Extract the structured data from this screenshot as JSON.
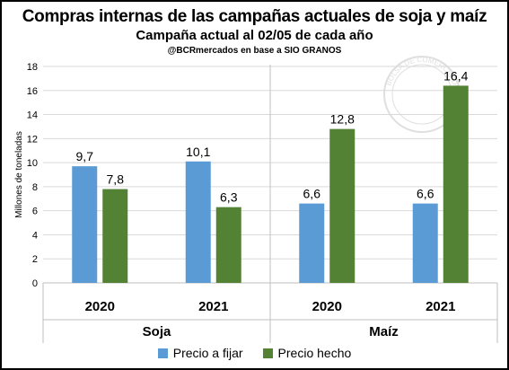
{
  "colors": {
    "precio_a_fijar": "#5B9BD5",
    "precio_hecho": "#548235",
    "grid": "#d9d9d9"
  },
  "watermark": "BOLSA DE COMERCIO DE ROSARIO",
  "chart_data": {
    "type": "bar",
    "title": "Compras internas de las campañas actuales de soja y maíz",
    "subtitle": "Campaña actual al 02/05 de cada año",
    "source": "@BCRmercados en base a SIO GRANOS",
    "ylabel": "Millones de toneladas",
    "xlabel": "",
    "ylim": [
      0,
      18
    ],
    "yticks": [
      0,
      2,
      4,
      6,
      8,
      10,
      12,
      14,
      16,
      18
    ],
    "grid": true,
    "legend_position": "bottom",
    "groups": [
      {
        "name": "Soja",
        "categories": [
          "2020",
          "2021"
        ]
      },
      {
        "name": "Maíz",
        "categories": [
          "2020",
          "2021"
        ]
      }
    ],
    "categories": [
      "2020",
      "2021",
      "2020",
      "2021"
    ],
    "series": [
      {
        "name": "Precio a fijar",
        "values": [
          9.7,
          10.1,
          6.6,
          6.6
        ],
        "labels": [
          "9,7",
          "10,1",
          "6,6",
          "6,6"
        ]
      },
      {
        "name": "Precio hecho",
        "values": [
          7.8,
          6.3,
          12.8,
          16.4
        ],
        "labels": [
          "7,8",
          "6,3",
          "12,8",
          "16,4"
        ]
      }
    ]
  }
}
